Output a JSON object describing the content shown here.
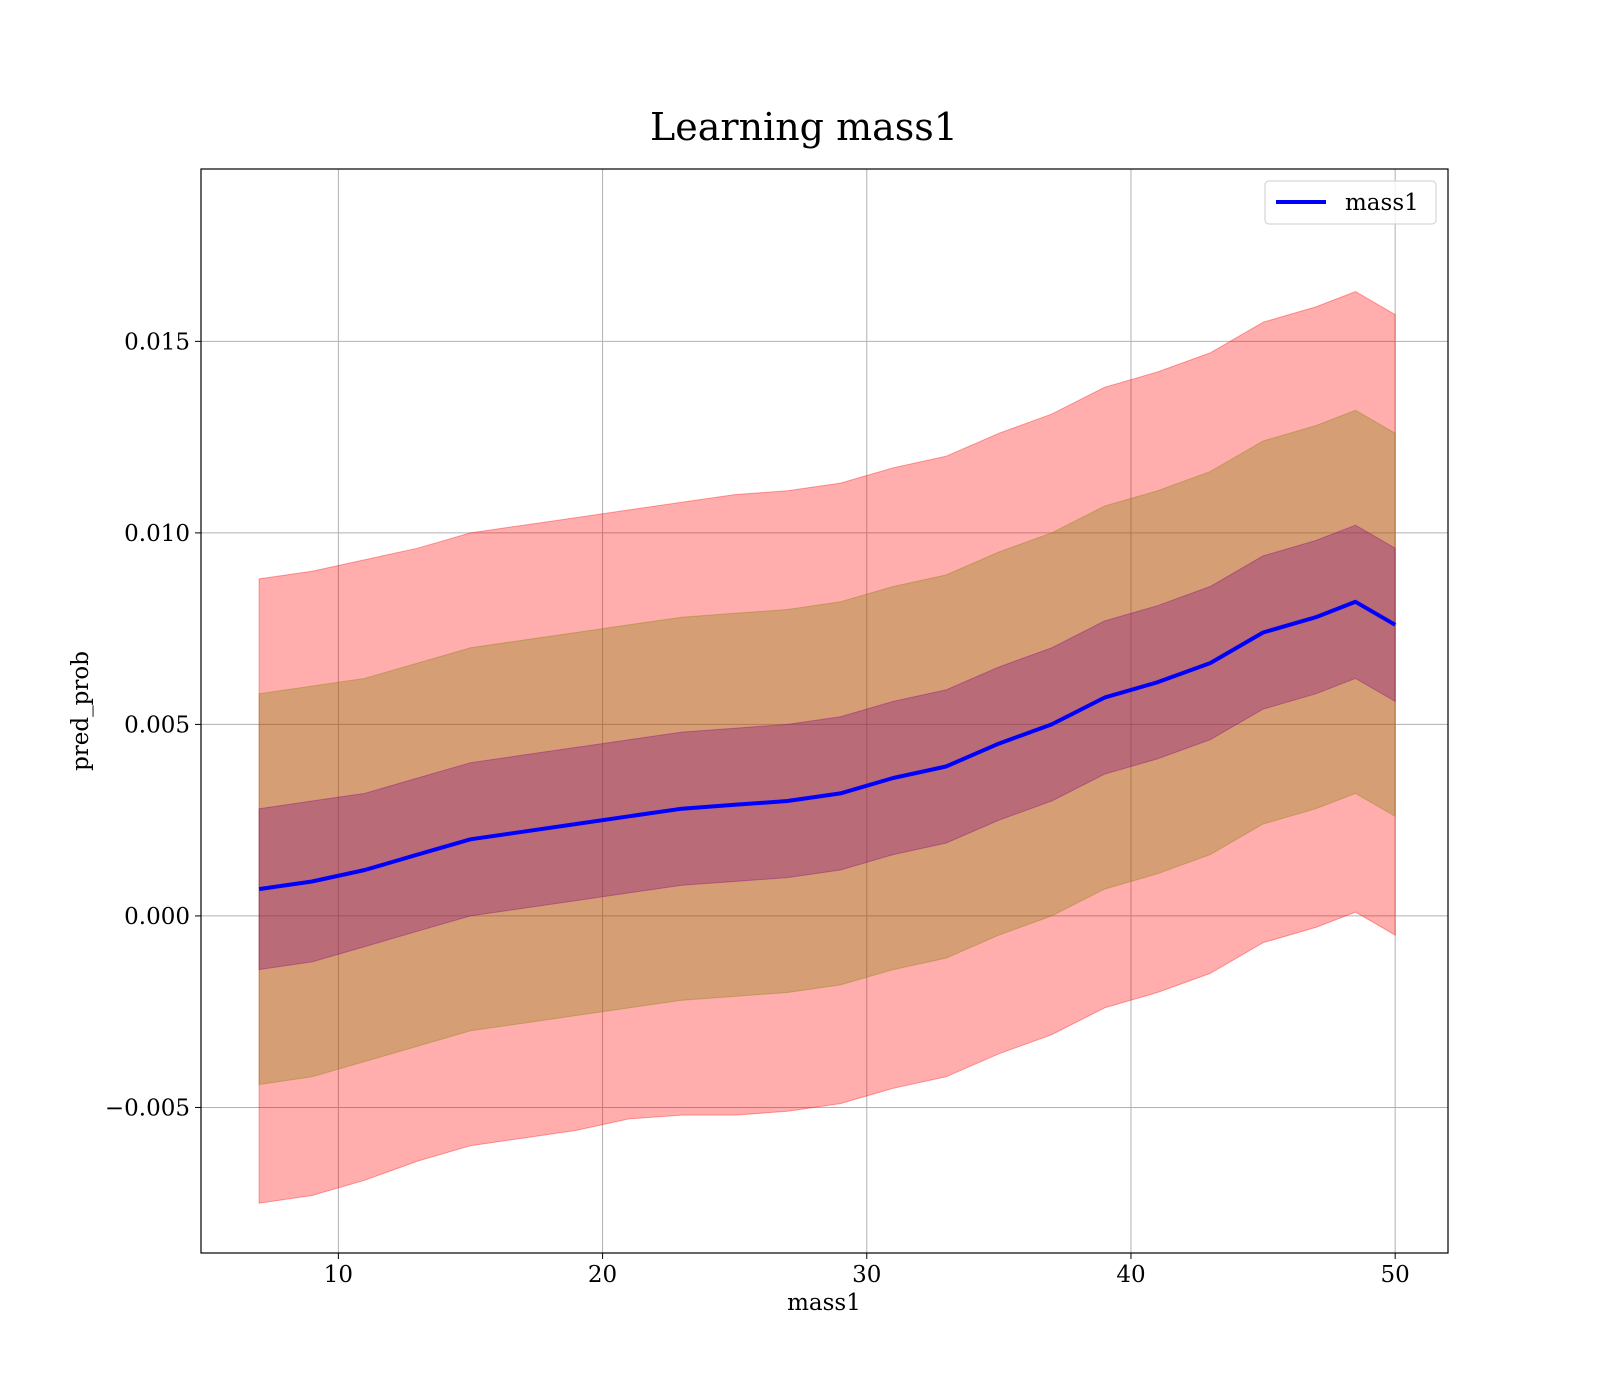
{
  "chart_data": {
    "type": "area",
    "title": "Learning mass1",
    "xlabel": "mass1",
    "ylabel": "pred_prob",
    "xlim": [
      4.8,
      52.0
    ],
    "ylim": [
      -0.0088,
      0.0195
    ],
    "x_ticks": [
      10,
      20,
      30,
      40,
      50
    ],
    "x_tick_labels": [
      "10",
      "20",
      "30",
      "40",
      "50"
    ],
    "y_ticks": [
      -0.005,
      0.0,
      0.005,
      0.01,
      0.015
    ],
    "y_tick_labels": [
      "−0.005",
      "0.000",
      "0.005",
      "0.010",
      "0.015"
    ],
    "grid": true,
    "legend": {
      "placement": "upper-right",
      "entries": [
        "mass1"
      ]
    },
    "colors": {
      "line": "#0000ff",
      "outer_band": "#ff0000",
      "middle_band": "#808000",
      "inner_band": "#800080",
      "grid": "#b0b0b0"
    },
    "x": [
      7,
      9,
      11,
      13,
      15,
      17,
      19,
      21,
      23,
      25,
      27,
      29,
      31,
      33,
      35,
      37,
      39,
      41,
      43,
      45,
      47,
      48.5,
      50
    ],
    "series": [
      {
        "name": "mass1",
        "values": [
          0.0007,
          0.0009,
          0.0012,
          0.0016,
          0.002,
          0.0022,
          0.0024,
          0.0026,
          0.0028,
          0.0029,
          0.003,
          0.0032,
          0.0036,
          0.0039,
          0.0045,
          0.005,
          0.0057,
          0.0061,
          0.0066,
          0.0074,
          0.0078,
          0.0082,
          0.0076
        ]
      }
    ],
    "bands": [
      {
        "lower": [
          -0.0075,
          -0.0073,
          -0.0069,
          -0.0064,
          -0.006,
          -0.0058,
          -0.0056,
          -0.0053,
          -0.0052,
          -0.0052,
          -0.0051,
          -0.0049,
          -0.0045,
          -0.0042,
          -0.0036,
          -0.0031,
          -0.0024,
          -0.002,
          -0.0015,
          -0.0007,
          -0.0003,
          0.0001,
          -0.0005
        ],
        "upper": [
          0.0088,
          0.009,
          0.0093,
          0.0096,
          0.01,
          0.0102,
          0.0104,
          0.0106,
          0.0108,
          0.011,
          0.0111,
          0.0113,
          0.0117,
          0.012,
          0.0126,
          0.0131,
          0.0138,
          0.0142,
          0.0147,
          0.0155,
          0.0159,
          0.0163,
          0.0157
        ]
      },
      {
        "lower": [
          -0.0044,
          -0.0042,
          -0.0038,
          -0.0034,
          -0.003,
          -0.0028,
          -0.0026,
          -0.0024,
          -0.0022,
          -0.0021,
          -0.002,
          -0.0018,
          -0.0014,
          -0.0011,
          -0.0005,
          0.0,
          0.0007,
          0.0011,
          0.0016,
          0.0024,
          0.0028,
          0.0032,
          0.0026
        ],
        "upper": [
          0.0058,
          0.006,
          0.0062,
          0.0066,
          0.007,
          0.0072,
          0.0074,
          0.0076,
          0.0078,
          0.0079,
          0.008,
          0.0082,
          0.0086,
          0.0089,
          0.0095,
          0.01,
          0.0107,
          0.0111,
          0.0116,
          0.0124,
          0.0128,
          0.0132,
          0.0126
        ]
      },
      {
        "lower": [
          -0.0014,
          -0.0012,
          -0.0008,
          -0.0004,
          0.0,
          0.0002,
          0.0004,
          0.0006,
          0.0008,
          0.0009,
          0.001,
          0.0012,
          0.0016,
          0.0019,
          0.0025,
          0.003,
          0.0037,
          0.0041,
          0.0046,
          0.0054,
          0.0058,
          0.0062,
          0.0056
        ],
        "upper": [
          0.0028,
          0.003,
          0.0032,
          0.0036,
          0.004,
          0.0042,
          0.0044,
          0.0046,
          0.0048,
          0.0049,
          0.005,
          0.0052,
          0.0056,
          0.0059,
          0.0065,
          0.007,
          0.0077,
          0.0081,
          0.0086,
          0.0094,
          0.0098,
          0.0102,
          0.0096
        ]
      }
    ]
  }
}
